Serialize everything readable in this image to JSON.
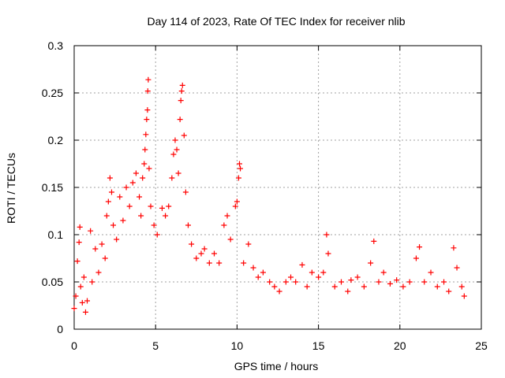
{
  "chart_data": {
    "type": "scatter",
    "title": "Day 114 of 2023, Rate Of TEC Index for receiver nlib",
    "xlabel": "GPS time / hours",
    "ylabel": "ROTI / TECUs",
    "xlim": [
      0,
      25
    ],
    "ylim": [
      0,
      0.3
    ],
    "x_ticks": [
      "0",
      "5",
      "10",
      "15",
      "20",
      "25"
    ],
    "y_ticks": [
      "0",
      "0.05",
      "0.1",
      "0.15",
      "0.2",
      "0.25",
      "0.3"
    ],
    "grid": true,
    "marker": "+",
    "color": "#ff0000",
    "series": [
      {
        "points": [
          [
            0.0,
            0.022
          ],
          [
            0.1,
            0.035
          ],
          [
            0.2,
            0.072
          ],
          [
            0.3,
            0.092
          ],
          [
            0.35,
            0.108
          ],
          [
            0.4,
            0.045
          ],
          [
            0.5,
            0.028
          ],
          [
            0.6,
            0.055
          ],
          [
            0.7,
            0.018
          ],
          [
            0.8,
            0.03
          ],
          [
            1.0,
            0.104
          ],
          [
            1.1,
            0.05
          ],
          [
            1.3,
            0.085
          ],
          [
            1.5,
            0.06
          ],
          [
            1.7,
            0.09
          ],
          [
            1.9,
            0.075
          ],
          [
            2.0,
            0.12
          ],
          [
            2.1,
            0.135
          ],
          [
            2.2,
            0.16
          ],
          [
            2.3,
            0.145
          ],
          [
            2.4,
            0.11
          ],
          [
            2.6,
            0.095
          ],
          [
            2.8,
            0.14
          ],
          [
            3.0,
            0.115
          ],
          [
            3.2,
            0.15
          ],
          [
            3.4,
            0.13
          ],
          [
            3.6,
            0.155
          ],
          [
            3.8,
            0.165
          ],
          [
            4.0,
            0.14
          ],
          [
            4.1,
            0.12
          ],
          [
            4.2,
            0.16
          ],
          [
            4.3,
            0.175
          ],
          [
            4.35,
            0.19
          ],
          [
            4.4,
            0.206
          ],
          [
            4.45,
            0.222
          ],
          [
            4.5,
            0.232
          ],
          [
            4.52,
            0.252
          ],
          [
            4.55,
            0.264
          ],
          [
            4.6,
            0.17
          ],
          [
            4.7,
            0.13
          ],
          [
            4.9,
            0.11
          ],
          [
            5.1,
            0.1
          ],
          [
            5.4,
            0.128
          ],
          [
            5.6,
            0.12
          ],
          [
            5.8,
            0.13
          ],
          [
            6.0,
            0.16
          ],
          [
            6.1,
            0.185
          ],
          [
            6.2,
            0.2
          ],
          [
            6.3,
            0.19
          ],
          [
            6.4,
            0.165
          ],
          [
            6.5,
            0.222
          ],
          [
            6.55,
            0.242
          ],
          [
            6.6,
            0.252
          ],
          [
            6.65,
            0.258
          ],
          [
            6.75,
            0.205
          ],
          [
            6.85,
            0.145
          ],
          [
            7.0,
            0.11
          ],
          [
            7.2,
            0.09
          ],
          [
            7.5,
            0.075
          ],
          [
            7.8,
            0.08
          ],
          [
            8.0,
            0.085
          ],
          [
            8.3,
            0.07
          ],
          [
            8.6,
            0.08
          ],
          [
            8.9,
            0.07
          ],
          [
            9.2,
            0.11
          ],
          [
            9.4,
            0.12
          ],
          [
            9.6,
            0.095
          ],
          [
            9.9,
            0.13
          ],
          [
            10.0,
            0.135
          ],
          [
            10.1,
            0.16
          ],
          [
            10.15,
            0.175
          ],
          [
            10.2,
            0.17
          ],
          [
            10.4,
            0.07
          ],
          [
            10.7,
            0.09
          ],
          [
            11.0,
            0.065
          ],
          [
            11.3,
            0.055
          ],
          [
            11.6,
            0.06
          ],
          [
            12.0,
            0.05
          ],
          [
            12.3,
            0.045
          ],
          [
            12.6,
            0.04
          ],
          [
            13.0,
            0.05
          ],
          [
            13.3,
            0.055
          ],
          [
            13.6,
            0.05
          ],
          [
            14.0,
            0.068
          ],
          [
            14.3,
            0.045
          ],
          [
            14.6,
            0.06
          ],
          [
            15.0,
            0.055
          ],
          [
            15.3,
            0.06
          ],
          [
            15.5,
            0.1
          ],
          [
            15.6,
            0.08
          ],
          [
            16.0,
            0.045
          ],
          [
            16.4,
            0.05
          ],
          [
            16.8,
            0.04
          ],
          [
            17.0,
            0.052
          ],
          [
            17.4,
            0.055
          ],
          [
            17.8,
            0.045
          ],
          [
            18.2,
            0.07
          ],
          [
            18.4,
            0.093
          ],
          [
            18.7,
            0.05
          ],
          [
            19.0,
            0.06
          ],
          [
            19.4,
            0.048
          ],
          [
            19.8,
            0.052
          ],
          [
            20.2,
            0.045
          ],
          [
            20.6,
            0.05
          ],
          [
            21.0,
            0.075
          ],
          [
            21.2,
            0.087
          ],
          [
            21.5,
            0.05
          ],
          [
            21.9,
            0.06
          ],
          [
            22.3,
            0.045
          ],
          [
            22.7,
            0.05
          ],
          [
            23.0,
            0.04
          ],
          [
            23.3,
            0.086
          ],
          [
            23.5,
            0.065
          ],
          [
            23.8,
            0.045
          ],
          [
            23.95,
            0.035
          ]
        ]
      }
    ]
  }
}
